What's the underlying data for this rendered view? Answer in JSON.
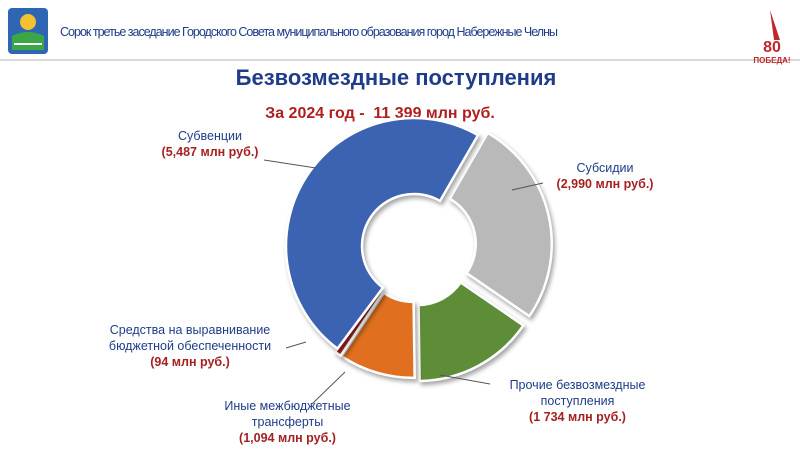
{
  "header": {
    "text": "Сорок третье заседание Городского Совета муниципального образования город Набережные Челны",
    "logo_number": "80",
    "logo_text": "ПОБЕДА!"
  },
  "chart_data": {
    "type": "donut",
    "title": "Безвозмездные поступления",
    "subtitle": "За 2024 год -  11 399 млн руб.",
    "categories": [
      "Субсидии",
      "Прочие безвозмездные поступления",
      "Иные межбюджетные трансферты",
      "Средства на выравнивание бюджетной обеспеченности",
      "Субвенции"
    ],
    "values": [
      2990,
      1734,
      1094,
      94,
      5487
    ],
    "value_labels": [
      "(2,990 млн руб.)",
      "(1 734 млн руб.)",
      "(1,094 млн руб.)",
      "(94 млн руб.)",
      "(5,487 млн руб.)"
    ],
    "colors": [
      "#b9b9b9",
      "#5d8d36",
      "#e0701f",
      "#a52121",
      "#3b63b1"
    ]
  }
}
